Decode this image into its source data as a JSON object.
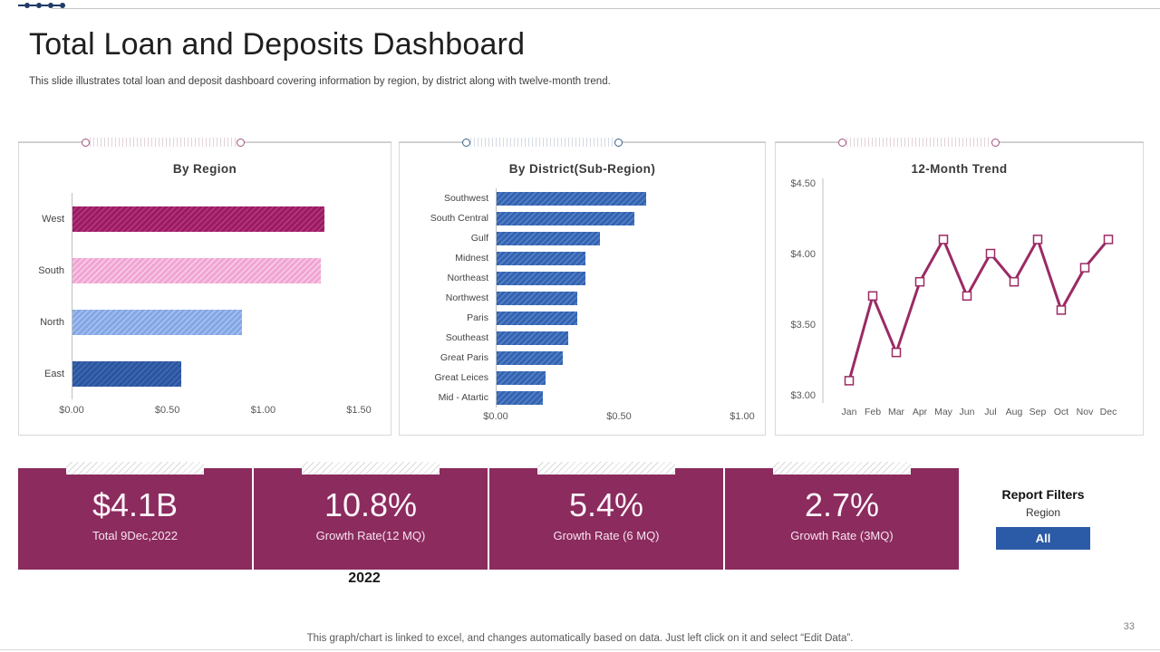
{
  "slide": {
    "title": "Total Loan and Deposits Dashboard",
    "subtitle": "This slide illustrates total loan and deposit dashboard covering information by region, by district along with twelve-month trend.",
    "year_label": "2022",
    "page_number": "33",
    "footer_note": "This graph/chart is linked to excel, and changes automatically based on data. Just left click on it and select “Edit Data”."
  },
  "chart_data": [
    {
      "type": "bar",
      "orientation": "horizontal",
      "title": "By Region",
      "categories": [
        "West",
        "South",
        "North",
        "East"
      ],
      "values": [
        1.32,
        1.3,
        0.89,
        0.57
      ],
      "xlim": [
        0,
        1.5
      ],
      "x_ticks": [
        "$0.00",
        "$0.50",
        "$1.00",
        "$1.50"
      ],
      "grid": false,
      "bar_styles": [
        {
          "color": "#9D1A63",
          "stripe": "#B03A7D"
        },
        {
          "color": "#F0A5D3",
          "stripe": "#F8CCE7"
        },
        {
          "color": "#83A7E5",
          "stripe": "#A8C1F0"
        },
        {
          "color": "#2A56A0",
          "stripe": "#4568B2"
        }
      ]
    },
    {
      "type": "bar",
      "orientation": "horizontal",
      "title": "By District(Sub-Region)",
      "categories": [
        "Southwest",
        "South Central",
        "Gulf",
        "Midnest",
        "Northeast",
        "Northwest",
        "Paris",
        "Southeast",
        "Great Paris",
        "Great Leices",
        "Mid - Atartic"
      ],
      "values": [
        0.61,
        0.56,
        0.42,
        0.36,
        0.36,
        0.33,
        0.33,
        0.29,
        0.27,
        0.2,
        0.19
      ],
      "xlim": [
        0,
        1.0
      ],
      "x_ticks": [
        "$0.00",
        "$0.50",
        "$1.00"
      ],
      "grid": false,
      "bar_styles": [
        {
          "color": "#3363B1",
          "stripe": "#5682C6"
        }
      ]
    },
    {
      "type": "line",
      "title": "12-Month Trend",
      "x": [
        "Jan",
        "Feb",
        "Mar",
        "Apr",
        "May",
        "Jun",
        "Jul",
        "Aug",
        "Sep",
        "Oct",
        "Nov",
        "Dec"
      ],
      "values": [
        3.1,
        3.7,
        3.3,
        3.8,
        4.1,
        3.7,
        4.0,
        3.8,
        4.1,
        3.6,
        3.9,
        4.1
      ],
      "ylim": [
        3.0,
        4.5
      ],
      "y_ticks": [
        "$4.50",
        "$4.00",
        "$3.50",
        "$3.00"
      ],
      "line_color": "#9B2A63",
      "marker": "square",
      "grid": false,
      "legend": "none"
    }
  ],
  "kpis": [
    {
      "value": "$4.1B",
      "label": "Total 9Dec,2022"
    },
    {
      "value": "10.8%",
      "label": "Growth Rate(12 MQ)"
    },
    {
      "value": "5.4%",
      "label": "Growth Rate (6 MQ)"
    },
    {
      "value": "2.7%",
      "label": "Growth Rate (3MQ)"
    }
  ],
  "filters": {
    "title": "Report Filters",
    "field_label": "Region",
    "button_label": "All"
  },
  "colors": {
    "kpi_band": "#8B2B5E",
    "accent_magenta": "#9B2A63",
    "filter_button_blue": "#2B5AA6",
    "dots_navy": "#1F3A67",
    "axis_text": "#595959"
  }
}
